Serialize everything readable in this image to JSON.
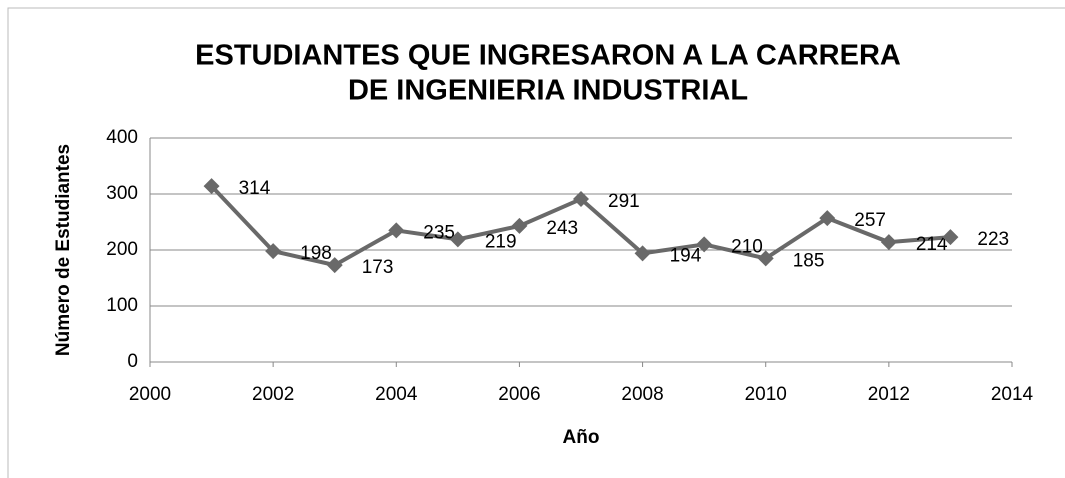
{
  "chart_data": {
    "type": "line",
    "title": [
      "ESTUDIANTES QUE INGRESARON A LA CARRERA",
      "DE INGENIERIA INDUSTRIAL"
    ],
    "x_label": "Año",
    "y_label": "Número de Estudiantes",
    "x": [
      2001,
      2002,
      2003,
      2004,
      2005,
      2006,
      2007,
      2008,
      2009,
      2010,
      2011,
      2012,
      2013
    ],
    "values": [
      314,
      198,
      173,
      235,
      219,
      243,
      291,
      194,
      210,
      185,
      257,
      214,
      223
    ],
    "color": "#696969",
    "xlim": [
      2000,
      2014
    ],
    "xticks": [
      2000,
      2002,
      2004,
      2006,
      2008,
      2010,
      2012,
      2014
    ],
    "ylim": [
      0,
      400
    ],
    "yticks": [
      0,
      100,
      200,
      300,
      400
    ],
    "grid": true
  }
}
